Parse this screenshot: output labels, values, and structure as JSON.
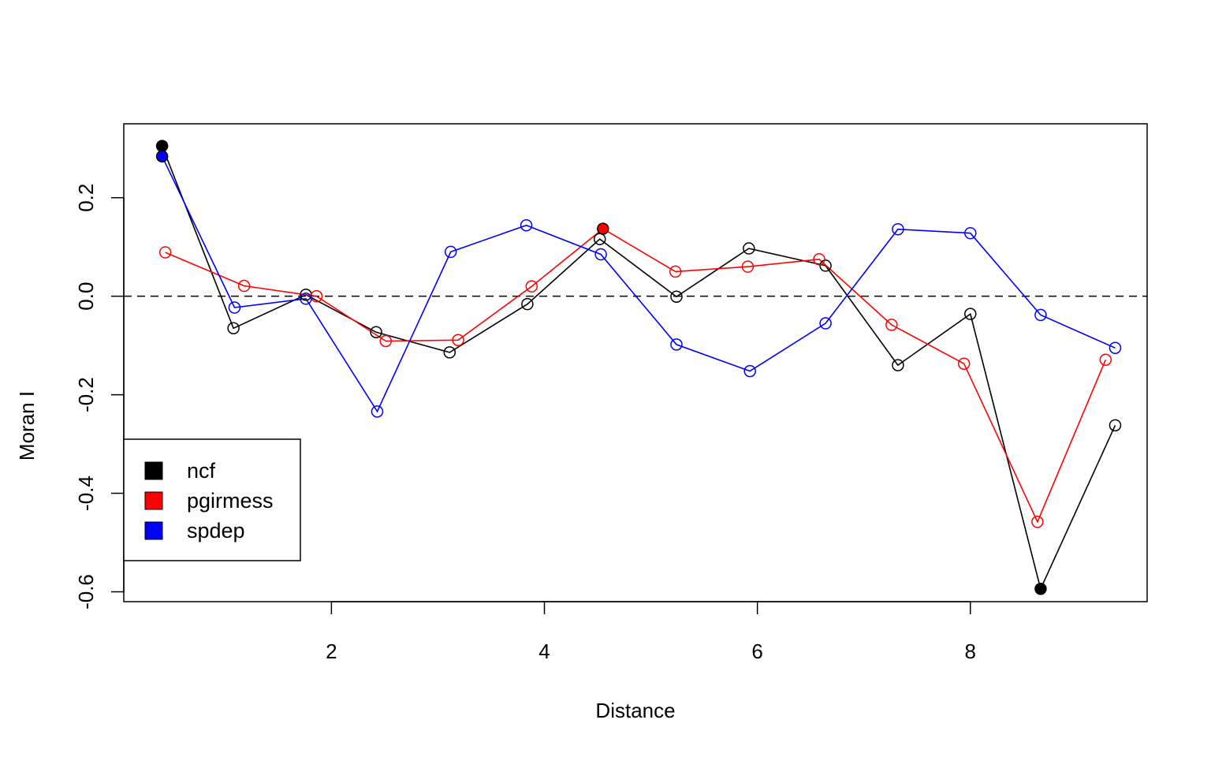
{
  "chart_data": {
    "type": "line",
    "xlabel": "Distance",
    "ylabel": "Moran I",
    "xlim": [
      0.05,
      9.66
    ],
    "ylim": [
      -0.62,
      0.35
    ],
    "x_ticks": [
      2,
      4,
      6,
      8
    ],
    "x_tick_labels": [
      "2",
      "4",
      "6",
      "8"
    ],
    "y_ticks": [
      -0.6,
      -0.4,
      -0.2,
      0.0,
      0.2
    ],
    "y_tick_labels": [
      "-0.6",
      "-0.4",
      "-0.2",
      "0.0",
      "0.2"
    ],
    "reference_line": {
      "y": 0,
      "style": "dashed"
    },
    "grid": false,
    "legend_position": "bottom-left",
    "series": [
      {
        "name": "ncf",
        "color": "#000000",
        "x": [
          0.41,
          1.08,
          1.76,
          2.42,
          3.11,
          3.84,
          4.52,
          5.24,
          5.92,
          6.64,
          7.32,
          8.0,
          8.66,
          9.36
        ],
        "y": [
          0.305,
          -0.065,
          0.003,
          -0.073,
          -0.114,
          -0.016,
          0.116,
          -0.001,
          0.097,
          0.062,
          -0.14,
          -0.036,
          -0.594,
          -0.262
        ],
        "filled": [
          true,
          false,
          false,
          false,
          false,
          false,
          false,
          false,
          false,
          false,
          false,
          false,
          true,
          false
        ]
      },
      {
        "name": "pgirmess",
        "color": "#ff0000",
        "x": [
          0.44,
          1.18,
          1.86,
          2.51,
          3.19,
          3.88,
          4.55,
          5.23,
          5.91,
          6.58,
          7.26,
          7.94,
          8.63,
          9.27
        ],
        "y": [
          0.089,
          0.021,
          0.0,
          -0.091,
          -0.089,
          0.02,
          0.137,
          0.05,
          0.06,
          0.075,
          -0.058,
          -0.137,
          -0.458,
          -0.129
        ],
        "filled": [
          false,
          false,
          false,
          false,
          false,
          false,
          true,
          false,
          false,
          false,
          false,
          false,
          false,
          false
        ]
      },
      {
        "name": "spdep",
        "color": "#0000ff",
        "x": [
          0.41,
          1.09,
          1.76,
          2.43,
          3.12,
          3.83,
          4.53,
          5.24,
          5.93,
          6.64,
          7.32,
          8.0,
          8.66,
          9.36
        ],
        "y": [
          0.284,
          -0.023,
          -0.005,
          -0.234,
          0.09,
          0.144,
          0.085,
          -0.098,
          -0.152,
          -0.055,
          0.136,
          0.128,
          -0.038,
          -0.105
        ],
        "filled": [
          true,
          false,
          false,
          false,
          false,
          false,
          false,
          false,
          false,
          false,
          false,
          false,
          false,
          false
        ]
      }
    ],
    "legend": {
      "entries": [
        {
          "label": "ncf",
          "color": "#000000"
        },
        {
          "label": "pgirmess",
          "color": "#ff0000"
        },
        {
          "label": "spdep",
          "color": "#0000ff"
        }
      ]
    }
  }
}
